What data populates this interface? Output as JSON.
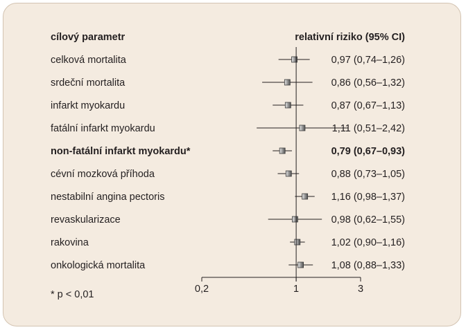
{
  "chart_data": {
    "type": "forest",
    "header_left": "cílový parametr",
    "header_right": "relativní riziko (95% CI)",
    "rows": [
      {
        "label": "celková mortalita",
        "value_text": "0,97 (0,74–1,26)",
        "rr": 0.97,
        "lo": 0.74,
        "hi": 1.26,
        "bold": false
      },
      {
        "label": "srdeční mortalita",
        "value_text": "0,86 (0,56–1,32)",
        "rr": 0.86,
        "lo": 0.56,
        "hi": 1.32,
        "bold": false
      },
      {
        "label": "infarkt myokardu",
        "value_text": "0,87 (0,67–1,13)",
        "rr": 0.87,
        "lo": 0.67,
        "hi": 1.13,
        "bold": false
      },
      {
        "label": "fatální infarkt myokardu",
        "value_text": "1,11 (0,51–2,42)",
        "rr": 1.11,
        "lo": 0.51,
        "hi": 2.42,
        "bold": false
      },
      {
        "label": "non-fatální infarkt myokardu*",
        "value_text": "0,79 (0,67–0,93)",
        "rr": 0.79,
        "lo": 0.67,
        "hi": 0.93,
        "bold": true
      },
      {
        "label": "cévní mozková příhoda",
        "value_text": "0,88 (0,73–1,05)",
        "rr": 0.88,
        "lo": 0.73,
        "hi": 1.05,
        "bold": false
      },
      {
        "label": "nestabilní angina pectoris",
        "value_text": "1,16 (0,98–1,37)",
        "rr": 1.16,
        "lo": 0.98,
        "hi": 1.37,
        "bold": false
      },
      {
        "label": "revaskularizace",
        "value_text": "0,98 (0,62–1,55)",
        "rr": 0.98,
        "lo": 0.62,
        "hi": 1.55,
        "bold": false
      },
      {
        "label": "rakovina",
        "value_text": "1,02 (0,90–1,16)",
        "rr": 1.02,
        "lo": 0.9,
        "hi": 1.16,
        "bold": false
      },
      {
        "label": "onkologická mortalita",
        "value_text": "1,08 (0,88–1,33)",
        "rr": 1.08,
        "lo": 0.88,
        "hi": 1.33,
        "bold": false
      }
    ],
    "x_ticks": [
      {
        "value": 0.2,
        "label": "0,2"
      },
      {
        "value": 1,
        "label": "1"
      },
      {
        "value": 3,
        "label": "3"
      }
    ],
    "xlim": [
      0.2,
      3
    ],
    "x_scale": "log",
    "reference_line": 1,
    "footnote": "* p < 0,01",
    "colors": {
      "panel_bg": "#f4ebe0",
      "panel_border": "#d3c3b1",
      "marker_fill": "#8c8c8c",
      "line": "#231f20"
    }
  }
}
